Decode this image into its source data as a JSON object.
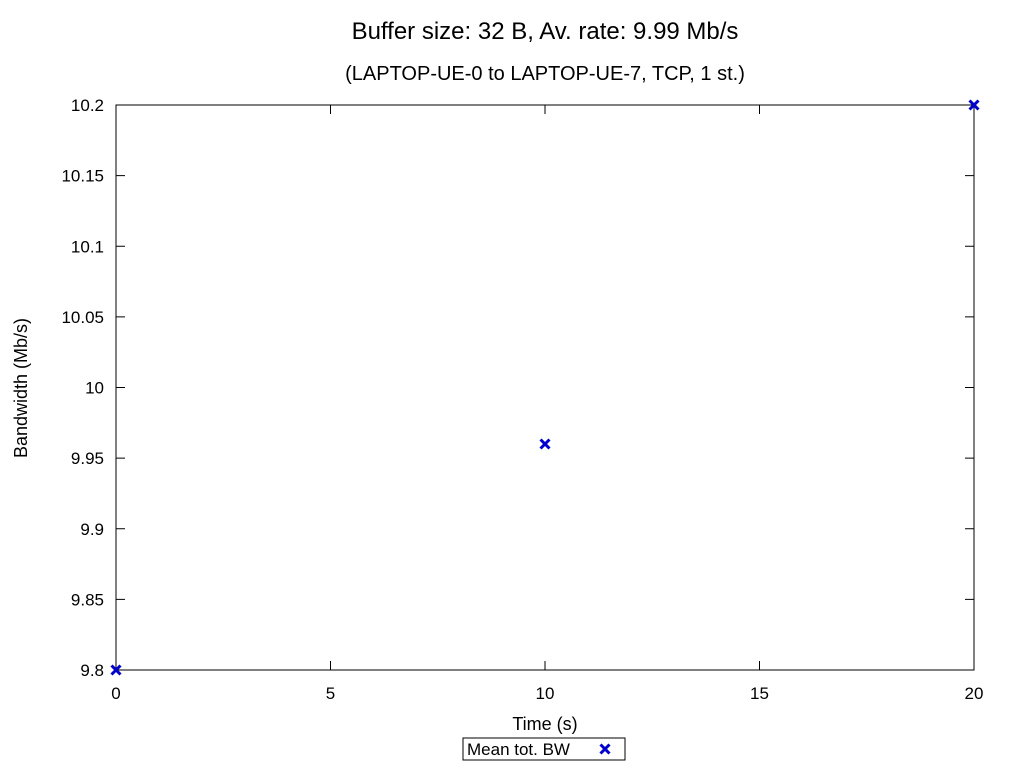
{
  "chart_data": {
    "type": "scatter",
    "title": "Buffer size: 32 B, Av. rate: 9.99 Mb/s",
    "subtitle": "(LAPTOP-UE-0 to LAPTOP-UE-7, TCP, 1 st.)",
    "xlabel": "Time (s)",
    "ylabel": "Bandwidth (Mb/s)",
    "xlim": [
      0,
      20
    ],
    "ylim": [
      9.8,
      10.2
    ],
    "xticks": [
      "0",
      "5",
      "10",
      "15",
      "20"
    ],
    "yticks": [
      "9.8",
      "9.85",
      "9.9",
      "9.95",
      "10",
      "10.05",
      "10.1",
      "10.15",
      "10.2"
    ],
    "grid": false,
    "legend_position": "bottom-center",
    "series": [
      {
        "name": "Mean tot. BW",
        "marker": "x",
        "color": "#0000cc",
        "x": [
          0,
          10,
          20
        ],
        "y": [
          9.8,
          9.96,
          10.2
        ]
      }
    ]
  }
}
